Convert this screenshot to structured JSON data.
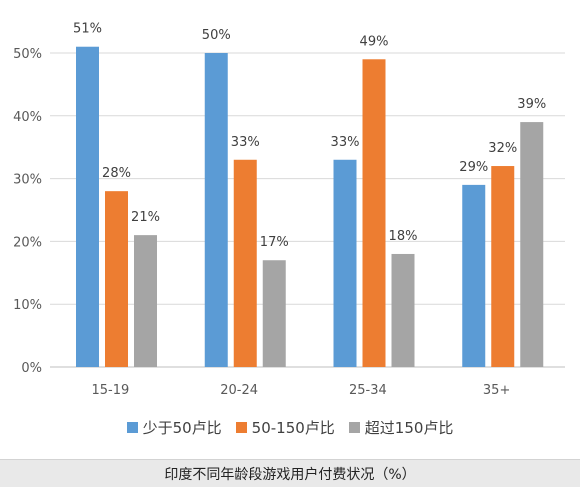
{
  "caption": "印度不同年龄段游戏用户付费状况（%）",
  "chart_data": {
    "type": "bar",
    "categories": [
      "15-19",
      "20-24",
      "25-34",
      "35+"
    ],
    "series": [
      {
        "name": "少于50卢比",
        "color": "#5b9bd5",
        "values": [
          51,
          50,
          33,
          29
        ]
      },
      {
        "name": "50-150卢比",
        "color": "#ed7d31",
        "values": [
          28,
          33,
          49,
          32
        ]
      },
      {
        "name": "超过150卢比",
        "color": "#a5a5a5",
        "values": [
          21,
          17,
          18,
          39
        ]
      }
    ],
    "y_ticks": [
      "0%",
      "10%",
      "20%",
      "30%",
      "40%",
      "50%"
    ],
    "ylim": [
      0,
      50
    ],
    "value_suffix": "%",
    "grid": true,
    "legend_position": "bottom"
  }
}
